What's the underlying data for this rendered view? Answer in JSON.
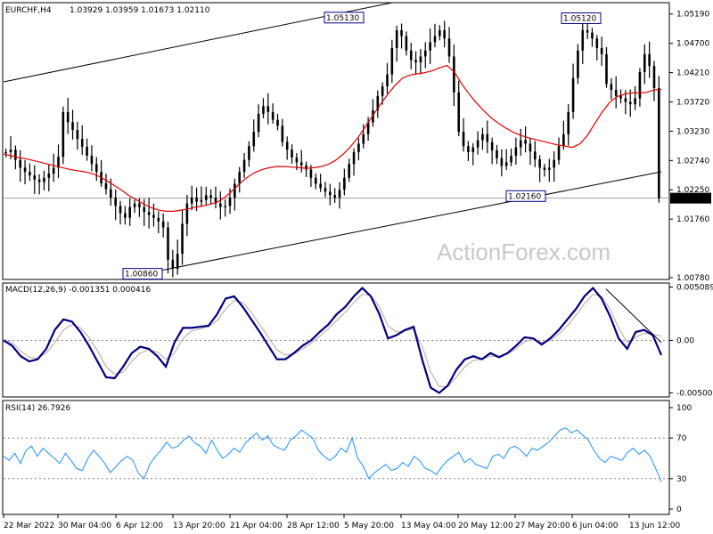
{
  "header": {
    "symbol": "EURCHF,H4",
    "ohlc": "1.03929 1.03959 1.01673 1.02110",
    "macd_label": "MACD(12,26,9) -0.001351 0.000416",
    "rsi_label": "RSI(14) 26.7926"
  },
  "watermark": "ActionForex.com",
  "colors": {
    "candles": "#000000",
    "moving_average": "#e00000",
    "macd_line": "#000080",
    "macd_signal": "#c0a0a0",
    "rsi_line": "#1e90ff",
    "channel": "#000000",
    "grid_dotted": "#808080"
  },
  "annotations": [
    {
      "text": "1.05130",
      "price": 1.0513
    },
    {
      "text": "1.05120",
      "price": 1.0512
    },
    {
      "text": "1.02160",
      "price": 1.0216
    },
    {
      "text": "1.00860",
      "price": 1.0086
    }
  ],
  "chart_data": [
    {
      "type": "candlestick",
      "title": "EURCHF,H4",
      "price_ticks": [
        "1.05190",
        "1.04700",
        "1.04210",
        "1.03720",
        "1.03230",
        "1.02740",
        "1.02250",
        "1.01760",
        "1.00780"
      ],
      "price_tick_values": [
        1.0519,
        1.047,
        1.0421,
        1.0372,
        1.0323,
        1.0274,
        1.0225,
        1.0176,
        1.0078
      ],
      "ylim": [
        1.0078,
        1.0535
      ],
      "current_price_label": "1.02110",
      "current_price": 1.0211,
      "x_labels": [
        "22 Mar 2022",
        "30 Mar 04:00",
        "6 Apr 12:00",
        "13 Apr 20:00",
        "21 Apr 04:00",
        "28 Apr 12:00",
        "5 May 20:00",
        "13 May 04:00",
        "20 May 12:00",
        "27 May 20:00",
        "6 Jun 04:00",
        "13 Jun 12:00"
      ],
      "close_series": [
        1.0288,
        1.0292,
        1.0275,
        1.0262,
        1.0255,
        1.0249,
        1.0242,
        1.0238,
        1.0245,
        1.0252,
        1.0262,
        1.028,
        1.0355,
        1.0338,
        1.0325,
        1.031,
        1.0297,
        1.0282,
        1.0268,
        1.0255,
        1.0236,
        1.0226,
        1.0212,
        1.0198,
        1.0186,
        1.0178,
        1.0196,
        1.0202,
        1.0196,
        1.0188,
        1.0183,
        1.0178,
        1.0172,
        1.0162,
        1.0108,
        1.0093,
        1.0118,
        1.0168,
        1.0202,
        1.0212,
        1.0205,
        1.0208,
        1.0216,
        1.0212,
        1.0202,
        1.0196,
        1.0198,
        1.0212,
        1.0235,
        1.0255,
        1.0275,
        1.0298,
        1.0322,
        1.0352,
        1.0365,
        1.0355,
        1.0342,
        1.0332,
        1.0305,
        1.0292,
        1.0279,
        1.0271,
        1.0266,
        1.0259,
        1.0245,
        1.0235,
        1.0228,
        1.0222,
        1.0216,
        1.0212,
        1.0225,
        1.0245,
        1.0268,
        1.0288,
        1.0302,
        1.0318,
        1.0338,
        1.0358,
        1.0382,
        1.0398,
        1.0418,
        1.0462,
        1.0492,
        1.0482,
        1.0458,
        1.0442,
        1.0438,
        1.0448,
        1.0458,
        1.0472,
        1.0482,
        1.0492,
        1.0478,
        1.0448,
        1.0388,
        1.0322,
        1.0298,
        1.0288,
        1.0296,
        1.0308,
        1.0318,
        1.0305,
        1.0291,
        1.0278,
        1.0265,
        1.0271,
        1.0282,
        1.0296,
        1.0308,
        1.0302,
        1.0289,
        1.0276,
        1.0262,
        1.0258,
        1.0262,
        1.0275,
        1.0298,
        1.0318,
        1.0355,
        1.0412,
        1.0458,
        1.0492,
        1.0488,
        1.0478,
        1.0462,
        1.0452,
        1.0402,
        1.0392,
        1.0382,
        1.0378,
        1.0372,
        1.0368,
        1.0378,
        1.0422,
        1.0452,
        1.0432,
        1.0395,
        1.0211
      ],
      "ma_series": [
        1.0285,
        1.0282,
        1.0279,
        1.0277,
        1.0274,
        1.0271,
        1.0268,
        1.0265,
        1.0262,
        1.0259,
        1.0257,
        1.0255,
        1.0252,
        1.0247,
        1.024,
        1.0232,
        1.0224,
        1.0215,
        1.0208,
        1.0201,
        1.0195,
        1.0191,
        1.0189,
        1.0189,
        1.0191,
        1.0193,
        1.0196,
        1.0198,
        1.0201,
        1.0205,
        1.0213,
        1.0224,
        1.0236,
        1.0246,
        1.0254,
        1.0259,
        1.0262,
        1.0264,
        1.0264,
        1.0263,
        1.0262,
        1.0261,
        1.0262,
        1.0264,
        1.0268,
        1.0275,
        1.0285,
        1.0298,
        1.0313,
        1.0331,
        1.035,
        1.0368,
        1.0385,
        1.04,
        1.0412,
        1.0417,
        1.0419,
        1.0421,
        1.0424,
        1.0429,
        1.0433,
        1.0422,
        1.0402,
        1.0385,
        1.037,
        1.0357,
        1.0345,
        1.0336,
        1.0328,
        1.0321,
        1.0316,
        1.0312,
        1.0309,
        1.0306,
        1.0303,
        1.03,
        1.0298,
        1.0296,
        1.0302,
        1.0316,
        1.0336,
        1.0355,
        1.0371,
        1.0381,
        1.0385,
        1.0387,
        1.0387,
        1.0388,
        1.0392,
        1.0393
      ],
      "macd_ticks": [
        "0.005089",
        "0.00",
        "-0.005002"
      ],
      "macd_tick_values": [
        0.005089,
        0.0,
        -0.005002
      ],
      "macd_series": [
        0.0,
        -0.0005,
        -0.0015,
        -0.002,
        -0.0018,
        -0.0008,
        0.001,
        0.002,
        0.0018,
        0.0008,
        -0.0005,
        -0.002,
        -0.0035,
        -0.0036,
        -0.0025,
        -0.0012,
        -0.0006,
        -0.0008,
        -0.0015,
        -0.0025,
        -0.0002,
        0.0012,
        0.0012,
        0.0013,
        0.0014,
        0.0025,
        0.004,
        0.0042,
        0.0032,
        0.002,
        0.0008,
        -0.0005,
        -0.0018,
        -0.0018,
        -0.0012,
        -0.0005,
        0.0,
        0.0008,
        0.0015,
        0.0025,
        0.0032,
        0.0042,
        0.005,
        0.0042,
        0.0025,
        0.0002,
        0.0005,
        0.001,
        0.0013,
        -0.0018,
        -0.0045,
        -0.005,
        -0.0043,
        -0.0028,
        -0.0018,
        -0.0015,
        -0.0018,
        -0.0012,
        -0.0016,
        -0.0012,
        -0.0005,
        0.0003,
        0.0002,
        -0.0004,
        0.0002,
        0.001,
        0.002,
        0.003,
        0.0042,
        0.005,
        0.004,
        0.0023,
        0.0002,
        -0.0008,
        0.0008,
        0.001,
        0.0005,
        -0.0014
      ],
      "macd_signal_series": [
        0.0001,
        -0.0002,
        -0.001,
        -0.0016,
        -0.0017,
        -0.0012,
        -0.0002,
        0.001,
        0.0015,
        0.0012,
        0.0003,
        -0.001,
        -0.0025,
        -0.0032,
        -0.003,
        -0.002,
        -0.0012,
        -0.0009,
        -0.0011,
        -0.0018,
        -0.0012,
        0.0002,
        0.0009,
        0.0011,
        0.0013,
        0.0019,
        0.003,
        0.0038,
        0.0036,
        0.0027,
        0.0015,
        0.0003,
        -0.0009,
        -0.0014,
        -0.0013,
        -0.0008,
        -0.0003,
        0.0004,
        0.0011,
        0.0019,
        0.0027,
        0.0036,
        0.0044,
        0.0043,
        0.0032,
        0.0014,
        0.0008,
        0.0009,
        0.0011,
        -0.0005,
        -0.003,
        -0.0044,
        -0.0044,
        -0.0035,
        -0.0025,
        -0.0019,
        -0.0018,
        -0.0015,
        -0.0015,
        -0.0013,
        -0.0008,
        -0.0001,
        0.0001,
        -0.0002,
        0.0,
        0.0006,
        0.0014,
        0.0024,
        0.0035,
        0.0044,
        0.0042,
        0.003,
        0.0012,
        -0.0002,
        0.0003,
        0.0007,
        0.0006,
        0.0004
      ],
      "macd_trendline": [
        [
          0.005,
          68
        ],
        [
          0.0,
          77
        ]
      ],
      "rsi_ticks": [
        "100",
        "70",
        "30",
        "0"
      ],
      "rsi_tick_values": [
        100,
        70,
        30,
        0
      ],
      "rsi_levels": [
        70,
        30
      ],
      "rsi_series": [
        52,
        48,
        55,
        45,
        58,
        62,
        52,
        60,
        55,
        50,
        45,
        55,
        48,
        40,
        38,
        50,
        58,
        52,
        45,
        36,
        42,
        48,
        52,
        48,
        35,
        30,
        44,
        52,
        58,
        66,
        60,
        62,
        68,
        72,
        65,
        62,
        55,
        68,
        58,
        50,
        54,
        60,
        56,
        65,
        70,
        75,
        68,
        72,
        63,
        60,
        58,
        68,
        72,
        78,
        74,
        70,
        58,
        52,
        48,
        52,
        60,
        56,
        70,
        50,
        42,
        30,
        36,
        40,
        44,
        38,
        40,
        46,
        42,
        52,
        48,
        40,
        38,
        34,
        42,
        48,
        52,
        56,
        46,
        50,
        44,
        42,
        40,
        52,
        54,
        50,
        60,
        62,
        58,
        52,
        60,
        58,
        62,
        66,
        72,
        78,
        80,
        75,
        78,
        73,
        68,
        58,
        50,
        46,
        52,
        50,
        48,
        56,
        60,
        54,
        58,
        52,
        40,
        26.79
      ]
    }
  ]
}
